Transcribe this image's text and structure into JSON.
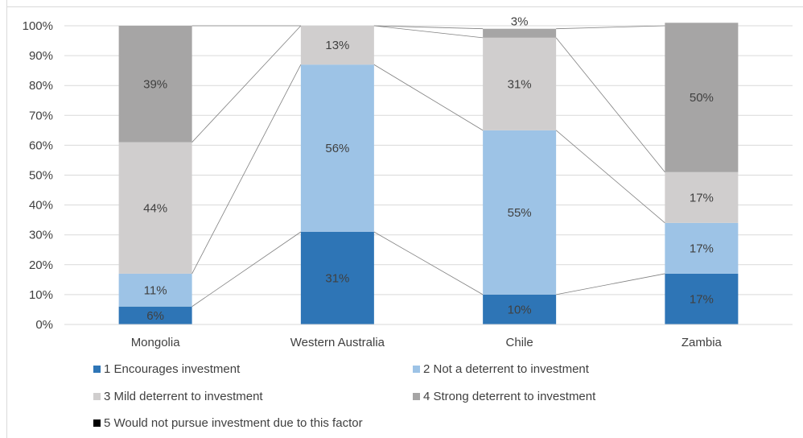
{
  "chart_data": {
    "type": "bar",
    "stacked": true,
    "categories": [
      "Mongolia",
      "Western Australia",
      "Chile",
      "Zambia"
    ],
    "series": [
      {
        "name": "1 Encourages investment",
        "values": [
          6,
          31,
          10,
          17
        ],
        "color": "#2e75b6"
      },
      {
        "name": "2 Not a deterrent to investment",
        "values": [
          11,
          56,
          55,
          17
        ],
        "color": "#9dc3e6"
      },
      {
        "name": "3 Mild deterrent to investment",
        "values": [
          44,
          13,
          31,
          17
        ],
        "color": "#d0cece"
      },
      {
        "name": "4 Strong deterrent to investment",
        "values": [
          39,
          0,
          3,
          50
        ],
        "color": "#a6a5a5"
      },
      {
        "name": "5 Would not pursue investment due to this factor",
        "values": [
          0,
          0,
          0,
          0
        ],
        "color": "#000000"
      }
    ],
    "data_labels": [
      [
        "6%",
        "31%",
        "10%",
        "17%"
      ],
      [
        "11%",
        "56%",
        "55%",
        "17%"
      ],
      [
        "44%",
        "13%",
        "31%",
        "17%"
      ],
      [
        "39%",
        "",
        "3%",
        "50%"
      ],
      [
        "",
        "",
        "",
        ""
      ]
    ],
    "y_ticks": [
      "0%",
      "10%",
      "20%",
      "30%",
      "40%",
      "50%",
      "60%",
      "70%",
      "80%",
      "90%",
      "100%"
    ],
    "ylim": [
      0,
      100
    ],
    "grid": true,
    "series_lines": true,
    "legend_position": "bottom",
    "colors": {
      "grid": "#d9d9d9",
      "text": "#404040",
      "series_line": "#808080"
    }
  }
}
